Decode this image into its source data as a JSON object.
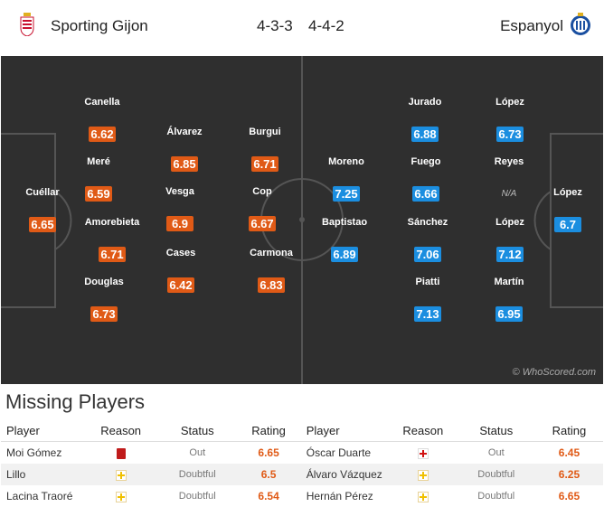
{
  "header": {
    "home_team": "Sporting Gijon",
    "away_team": "Espanyol",
    "home_formation": "4-3-3",
    "away_formation": "4-4-2",
    "home_crest_icon": "sporting-gijon-crest-icon",
    "away_crest_icon": "espanyol-crest-icon"
  },
  "colors": {
    "home_rating": "#e05a16",
    "away_rating": "#1b8ee0",
    "pitch": "#2f2f2f"
  },
  "pitch": {
    "watermark": "© WhoScored.com",
    "home_players": [
      {
        "name": "Cuéllar",
        "rating": "6.65"
      },
      {
        "name": "Canella",
        "rating": "6.62"
      },
      {
        "name": "Meré",
        "rating": "6.59"
      },
      {
        "name": "Amorebieta",
        "rating": "6.71"
      },
      {
        "name": "Douglas",
        "rating": "6.73"
      },
      {
        "name": "Álvarez",
        "rating": "6.85"
      },
      {
        "name": "Vesga",
        "rating": "6.9"
      },
      {
        "name": "Cases",
        "rating": "6.42"
      },
      {
        "name": "Burgui",
        "rating": "6.71"
      },
      {
        "name": "Cop",
        "rating": "6.67"
      },
      {
        "name": "Carmona",
        "rating": "6.83"
      }
    ],
    "away_players": [
      {
        "name": "López",
        "rating": "6.7"
      },
      {
        "name": "López",
        "rating": "6.73"
      },
      {
        "name": "Reyes",
        "rating": "N/A"
      },
      {
        "name": "López",
        "rating": "7.12"
      },
      {
        "name": "Martín",
        "rating": "6.95"
      },
      {
        "name": "Jurado",
        "rating": "6.88"
      },
      {
        "name": "Fuego",
        "rating": "6.66"
      },
      {
        "name": "Sánchez",
        "rating": "7.06"
      },
      {
        "name": "Piatti",
        "rating": "7.13"
      },
      {
        "name": "Moreno",
        "rating": "7.25"
      },
      {
        "name": "Baptistao",
        "rating": "6.89"
      }
    ]
  },
  "missing": {
    "title": "Missing Players",
    "headers": [
      "Player",
      "Reason",
      "Status",
      "Rating",
      "Player",
      "Reason",
      "Status",
      "Rating"
    ],
    "rows": [
      {
        "home": {
          "player": "Moi Gómez",
          "reason_icon": "red-card-icon",
          "status": "Out",
          "rating": "6.65"
        },
        "away": {
          "player": "Óscar Duarte",
          "reason_icon": "injury-icon",
          "status": "Out",
          "rating": "6.45"
        }
      },
      {
        "home": {
          "player": "Lillo",
          "reason_icon": "doubtful-icon",
          "status": "Doubtful",
          "rating": "6.5"
        },
        "away": {
          "player": "Álvaro Vázquez",
          "reason_icon": "doubtful-icon",
          "status": "Doubtful",
          "rating": "6.25"
        }
      },
      {
        "home": {
          "player": "Lacina Traoré",
          "reason_icon": "doubtful-icon",
          "status": "Doubtful",
          "rating": "6.54"
        },
        "away": {
          "player": "Hernán Pérez",
          "reason_icon": "doubtful-icon",
          "status": "Doubtful",
          "rating": "6.65"
        }
      }
    ]
  }
}
